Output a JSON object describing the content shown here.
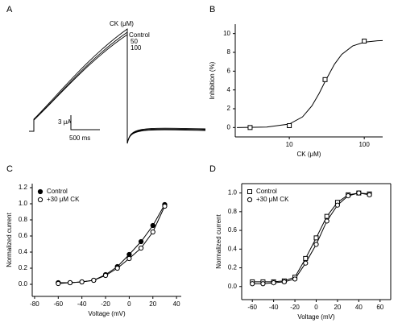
{
  "chart_data": [
    {
      "type": "trace",
      "panel": "A",
      "legend_title": "CK (μM)",
      "trace_labels": [
        "Control",
        "50",
        "100"
      ],
      "scale_bar_y": "3 μA",
      "scale_bar_x": "500 ms"
    },
    {
      "type": "scatter",
      "panel": "B",
      "xlabel": "CK (μM)",
      "ylabel": "Inhibition (%)",
      "xscale": "log",
      "xlim": [
        1.9,
        176
      ],
      "xticks": [
        10,
        100
      ],
      "ylim": [
        -1,
        11
      ],
      "yticks": [
        0,
        2,
        4,
        6,
        8,
        10
      ],
      "series": [
        {
          "color": "#000000",
          "marker": "square",
          "filled": false,
          "x": [
            3,
            10,
            30,
            100
          ],
          "values": [
            0,
            0.2,
            5.1,
            9.2
          ]
        },
        {
          "color": "#000000",
          "style": "line",
          "x": [
            2,
            5,
            10,
            15,
            20,
            25,
            30,
            40,
            50,
            70,
            100,
            150,
            176
          ],
          "values": [
            0,
            0.05,
            0.37,
            1.13,
            2.3,
            3.63,
            4.89,
            6.73,
            7.78,
            8.68,
            9.08,
            9.23,
            9.25
          ]
        }
      ]
    },
    {
      "type": "scatter",
      "panel": "C",
      "xlabel": "Voltage (mV)",
      "ylabel": "Normalized current",
      "legend": "upper left",
      "xlim": [
        -82,
        44
      ],
      "xticks": [
        -80,
        -60,
        -40,
        -20,
        0,
        20,
        40
      ],
      "ylim": [
        -0.15,
        1.25
      ],
      "yticks": [
        {
          "value": 0,
          "label": "0.0"
        },
        0.2,
        0.4,
        0.6,
        0.8,
        {
          "value": 1,
          "label": "1.0"
        },
        1.2
      ],
      "series": [
        {
          "name": "Control",
          "color": "#000000",
          "marker": "circle",
          "filled": true,
          "connect": true,
          "x": [
            -60,
            -50,
            -40,
            -30,
            -20,
            -10,
            0,
            10,
            20,
            30
          ],
          "values": [
            0.02,
            0.02,
            0.03,
            0.05,
            0.12,
            0.22,
            0.37,
            0.53,
            0.73,
            0.99
          ]
        },
        {
          "name": "+30 μM CK",
          "color": "#000000",
          "marker": "circle",
          "filled": false,
          "connect": true,
          "x": [
            -60,
            -50,
            -40,
            -30,
            -20,
            -10,
            0,
            10,
            20,
            30
          ],
          "values": [
            0.01,
            0.02,
            0.03,
            0.05,
            0.11,
            0.2,
            0.32,
            0.45,
            0.65,
            0.97
          ]
        }
      ]
    },
    {
      "type": "scatter",
      "panel": "D",
      "xlabel": "Voltage (mV)",
      "ylabel": "Normalized current",
      "legend": "upper left",
      "xlim": [
        -70,
        70
      ],
      "xticks": [
        -60,
        -40,
        -20,
        0,
        20,
        40,
        60
      ],
      "ylim": [
        -0.14,
        1.1
      ],
      "yticks": [
        {
          "value": 0,
          "label": "0.0"
        },
        0.2,
        0.4,
        0.6,
        0.8,
        {
          "value": 1,
          "label": "1.0"
        }
      ],
      "series": [
        {
          "name": "Control",
          "color": "#000000",
          "marker": "square",
          "filled": false,
          "connect": true,
          "x": [
            -60,
            -50,
            -40,
            -30,
            -20,
            -10,
            0,
            10,
            20,
            30,
            40,
            50
          ],
          "values": [
            0.05,
            0.05,
            0.05,
            0.06,
            0.1,
            0.3,
            0.52,
            0.75,
            0.9,
            0.98,
            1.0,
            0.99
          ]
        },
        {
          "name": "+30 μM CK",
          "color": "#000000",
          "marker": "circle",
          "filled": false,
          "connect": true,
          "x": [
            -60,
            -50,
            -40,
            -30,
            -20,
            -10,
            0,
            10,
            20,
            30,
            40,
            50
          ],
          "values": [
            0.03,
            0.03,
            0.04,
            0.05,
            0.08,
            0.25,
            0.45,
            0.7,
            0.87,
            0.97,
            1.0,
            0.98
          ]
        }
      ]
    }
  ]
}
